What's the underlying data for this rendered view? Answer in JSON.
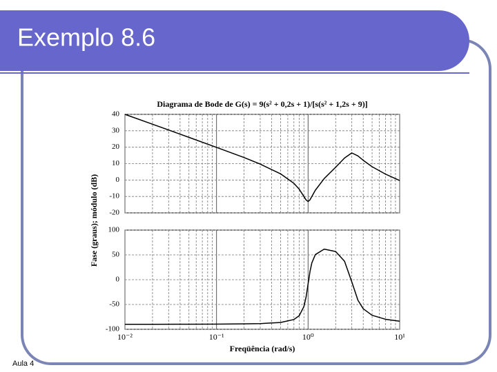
{
  "header": {
    "title": "Exemplo 8.6"
  },
  "footer": {
    "text": "Aula 4"
  },
  "figure": {
    "title": "Diagrama de Bode de G(s) = 9(s² + 0,2s + 1)/[s(s² + 1,2s + 9)]",
    "ylabel": "Fase (graus); módulo (dB)",
    "xlabel": "Freqüência (rad/s)"
  },
  "chart_data": [
    {
      "type": "line",
      "xscale": "log",
      "grid": true,
      "color": "#000000",
      "x": [
        0.01,
        0.02,
        0.05,
        0.1,
        0.2,
        0.3,
        0.5,
        0.7,
        0.8,
        0.9,
        0.95,
        1.0,
        1.05,
        1.1,
        1.2,
        1.5,
        2,
        2.5,
        3,
        3.5,
        4,
        5,
        7,
        10
      ],
      "values": [
        40,
        34,
        26,
        19.9,
        13.7,
        9.7,
        3.8,
        -2.0,
        -5.6,
        -10.0,
        -12.1,
        -13.1,
        -12.0,
        -10.0,
        -6.2,
        0.9,
        7.8,
        13.4,
        16.5,
        14.7,
        12.0,
        8.1,
        3.6,
        -0.3
      ],
      "xlim": [
        0.01,
        10
      ],
      "ylim": [
        -20,
        40
      ],
      "yticks": [
        40,
        30,
        20,
        10,
        0,
        -10,
        -20
      ]
    },
    {
      "type": "line",
      "xscale": "log",
      "grid": true,
      "color": "#000000",
      "x": [
        0.01,
        0.02,
        0.05,
        0.1,
        0.2,
        0.3,
        0.5,
        0.7,
        0.8,
        0.9,
        0.95,
        1.0,
        1.05,
        1.1,
        1.2,
        1.5,
        2,
        2.5,
        3,
        3.5,
        4,
        5,
        7,
        10
      ],
      "values": [
        -90,
        -89.9,
        -89.8,
        -89.6,
        -89.1,
        -88.5,
        -86.3,
        -80.3,
        -72.6,
        -54.1,
        -35.2,
        -8.5,
        16.9,
        34.1,
        50.6,
        61.6,
        56.8,
        37.1,
        -4.3,
        -41.3,
        -58.6,
        -71.8,
        -79.8,
        -83.7
      ],
      "xlim": [
        0.01,
        10
      ],
      "ylim": [
        -100,
        100
      ],
      "yticks": [
        100,
        50,
        0,
        -50,
        -100
      ],
      "xticks": [
        {
          "value": 0.01,
          "label": "10⁻²"
        },
        {
          "value": 0.1,
          "label": "10⁻¹"
        },
        {
          "value": 1,
          "label": "10⁰"
        },
        {
          "value": 10,
          "label": "10¹"
        }
      ]
    }
  ]
}
